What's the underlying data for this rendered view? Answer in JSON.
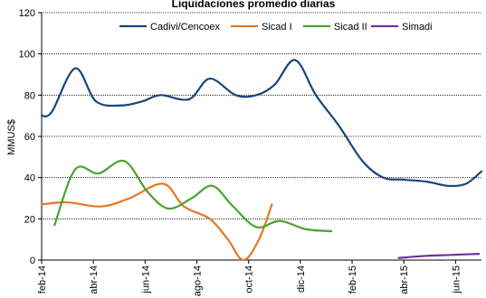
{
  "chart_data": {
    "type": "line",
    "title": "Liquidaciones promedio diarias",
    "ylabel": "MMUS$",
    "xlabel": "",
    "ylim": [
      0,
      120
    ],
    "yticks": [
      0,
      20,
      40,
      60,
      80,
      100,
      120
    ],
    "grid": true,
    "legend_position": "top",
    "x_tick_labels": [
      "feb-14",
      "abr-14",
      "jun-14",
      "ago-14",
      "oct-14",
      "dic-14",
      "feb-15",
      "abr-15",
      "jun-15"
    ],
    "x_range_months": [
      0,
      17
    ],
    "series": [
      {
        "name": "Cadivi/Cencoex",
        "color": "#17457A",
        "x": [
          0,
          0.4,
          1.3,
          2.1,
          3.1,
          3.9,
          4.6,
          5.7,
          6.5,
          7.5,
          8.3,
          9.0,
          9.8,
          10.6,
          11.5,
          12.4,
          13.2,
          14.0,
          14.9,
          15.7,
          16.4,
          17.0
        ],
        "y": [
          70,
          72,
          93,
          77,
          75,
          77,
          80,
          78,
          88,
          80,
          80,
          85,
          97,
          80,
          65,
          48,
          40,
          39,
          38,
          36,
          37,
          43
        ]
      },
      {
        "name": "Sicad I",
        "color": "#E87722",
        "x": [
          0,
          1.0,
          2.3,
          3.4,
          4.7,
          5.5,
          6.5,
          7.2,
          7.8,
          8.4,
          8.9
        ],
        "y": [
          27,
          28,
          26,
          30,
          37,
          26,
          20,
          10,
          0,
          10,
          27
        ]
      },
      {
        "name": "Sicad II",
        "color": "#4CA130",
        "x": [
          0.5,
          1.3,
          2.2,
          3.2,
          4.1,
          4.9,
          5.8,
          6.6,
          7.4,
          8.3,
          9.2,
          10.2,
          11.2
        ],
        "y": [
          17,
          44,
          42,
          48,
          33,
          25,
          30,
          36,
          26,
          16,
          19,
          15,
          14
        ]
      },
      {
        "name": "Simadi",
        "color": "#7030A0",
        "x": [
          13.8,
          14.8,
          15.8,
          16.9
        ],
        "y": [
          1,
          2,
          2.5,
          3
        ]
      }
    ]
  }
}
